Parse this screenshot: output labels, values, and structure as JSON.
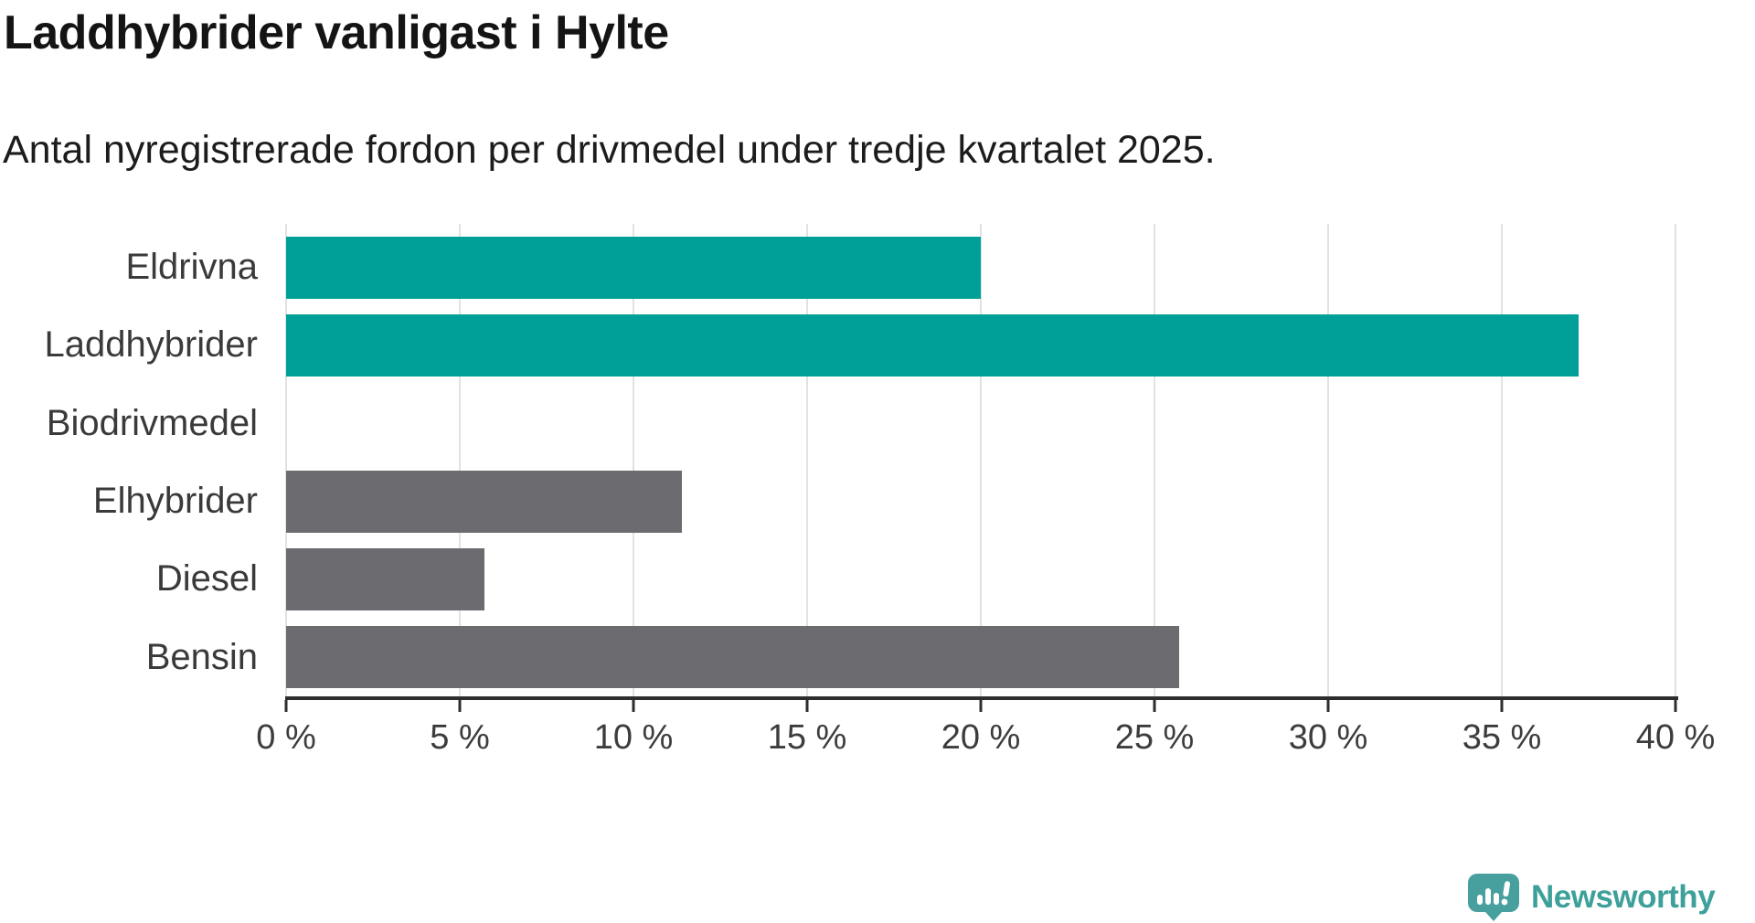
{
  "title": "Laddhybrider vanligast i Hylte",
  "subtitle": "Antal nyregistrerade fordon per drivmedel under tredje kvartalet 2025.",
  "chart_data": {
    "type": "bar",
    "orientation": "horizontal",
    "title": "Laddhybrider vanligast i Hylte",
    "subtitle": "Antal nyregistrerade fordon per drivmedel under tredje kvartalet 2025.",
    "categories": [
      "Eldrivna",
      "Laddhybrider",
      "Biodrivmedel",
      "Elhybrider",
      "Diesel",
      "Bensin"
    ],
    "values": [
      20.0,
      37.2,
      0,
      11.4,
      5.7,
      25.7
    ],
    "unit": "%",
    "xlim": [
      0,
      40
    ],
    "x_ticks": [
      0,
      5,
      10,
      15,
      20,
      25,
      30,
      35,
      40
    ],
    "x_tick_labels": [
      "0 %",
      "5 %",
      "10 %",
      "15 %",
      "20 %",
      "25 %",
      "30 %",
      "35 %",
      "40 %"
    ],
    "bar_colors": [
      "#00a099",
      "#00a099",
      "#6c6c70",
      "#6c6c70",
      "#6c6c70",
      "#6c6c70"
    ],
    "highlight_color": "#00a099",
    "default_color": "#6c6c70",
    "gridline_color": "#e2e2e2",
    "grid": true,
    "legend": "none"
  },
  "branding": {
    "logo_text": "Newsworthy",
    "logo_color": "#3da09a",
    "logo_icon": "speech-bubble-bar-chart-icon"
  }
}
